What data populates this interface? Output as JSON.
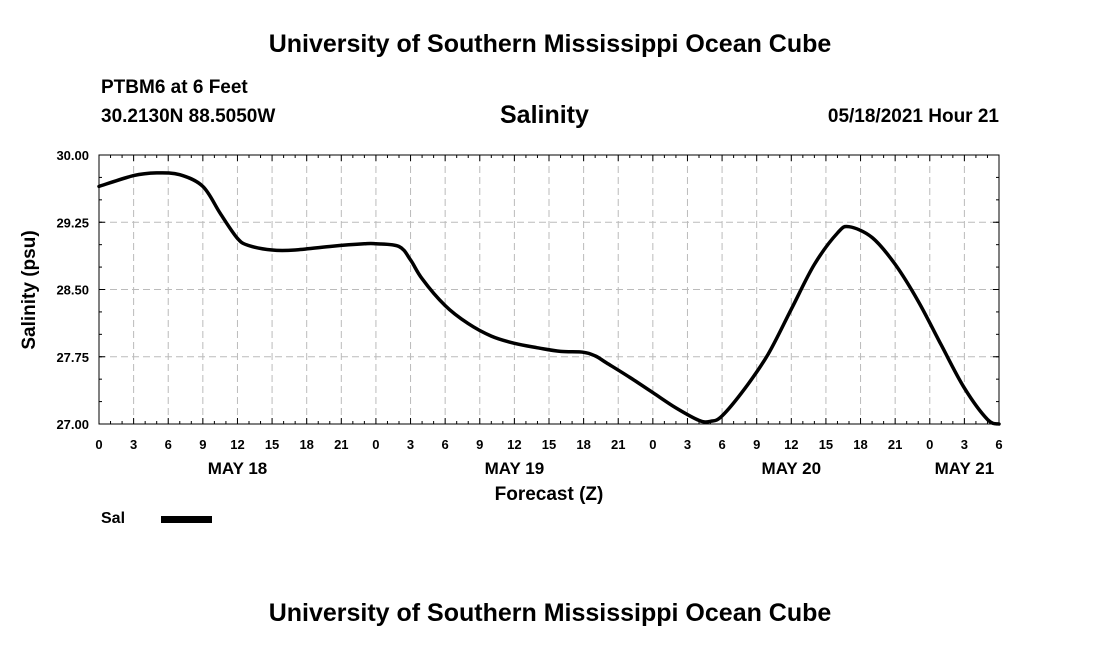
{
  "header": {
    "title": "University of Southern Mississippi Ocean Cube",
    "station": "PTBM6 at 6 Feet",
    "coords": "30.2130N  88.5050W",
    "variable": "Salinity",
    "datetime": "05/18/2021 Hour 21"
  },
  "footer": {
    "title": "University of Southern Mississippi Ocean Cube"
  },
  "legend": {
    "label": "Sal"
  },
  "chart_data": {
    "type": "line",
    "xlabel": "Forecast (Z)",
    "ylabel": "Salinity (psu)",
    "xlim": [
      0,
      78
    ],
    "ylim": [
      27.0,
      30.0
    ],
    "y_ticks": [
      "27.00",
      "27.75",
      "28.50",
      "29.25",
      "30.00"
    ],
    "x_ticks": [
      {
        "x": 0,
        "label": "0"
      },
      {
        "x": 3,
        "label": "3"
      },
      {
        "x": 6,
        "label": "6"
      },
      {
        "x": 9,
        "label": "9"
      },
      {
        "x": 12,
        "label": "12"
      },
      {
        "x": 15,
        "label": "15"
      },
      {
        "x": 18,
        "label": "18"
      },
      {
        "x": 21,
        "label": "21"
      },
      {
        "x": 24,
        "label": "0"
      },
      {
        "x": 27,
        "label": "3"
      },
      {
        "x": 30,
        "label": "6"
      },
      {
        "x": 33,
        "label": "9"
      },
      {
        "x": 36,
        "label": "12"
      },
      {
        "x": 39,
        "label": "15"
      },
      {
        "x": 42,
        "label": "18"
      },
      {
        "x": 45,
        "label": "21"
      },
      {
        "x": 48,
        "label": "0"
      },
      {
        "x": 51,
        "label": "3"
      },
      {
        "x": 54,
        "label": "6"
      },
      {
        "x": 57,
        "label": "9"
      },
      {
        "x": 60,
        "label": "12"
      },
      {
        "x": 63,
        "label": "15"
      },
      {
        "x": 66,
        "label": "18"
      },
      {
        "x": 69,
        "label": "21"
      },
      {
        "x": 72,
        "label": "0"
      },
      {
        "x": 75,
        "label": "3"
      },
      {
        "x": 78,
        "label": "6"
      }
    ],
    "date_labels": [
      {
        "x": 12,
        "label": "MAY 18"
      },
      {
        "x": 36,
        "label": "MAY 19"
      },
      {
        "x": 60,
        "label": "MAY 20"
      },
      {
        "x": 75,
        "label": "MAY 21"
      }
    ],
    "grid": true,
    "series": [
      {
        "name": "Sal",
        "color": "#000000",
        "x": [
          0,
          3,
          5,
          7,
          9,
          10.5,
          12,
          13,
          15,
          17,
          20,
          23,
          24,
          26,
          27,
          28,
          30,
          32,
          34,
          36,
          38,
          40,
          42,
          43,
          44,
          46,
          48,
          50,
          52,
          53,
          54,
          56,
          58,
          60,
          62,
          64,
          65,
          67,
          69,
          71,
          73,
          75,
          77,
          78
        ],
        "y": [
          29.65,
          29.77,
          29.8,
          29.78,
          29.65,
          29.35,
          29.07,
          28.99,
          28.94,
          28.94,
          28.98,
          29.01,
          29.01,
          28.98,
          28.83,
          28.62,
          28.32,
          28.12,
          27.98,
          27.9,
          27.85,
          27.81,
          27.8,
          27.76,
          27.68,
          27.52,
          27.35,
          27.18,
          27.04,
          27.03,
          27.09,
          27.4,
          27.78,
          28.28,
          28.78,
          29.13,
          29.2,
          29.08,
          28.78,
          28.37,
          27.88,
          27.4,
          27.05,
          27.0
        ]
      }
    ]
  }
}
